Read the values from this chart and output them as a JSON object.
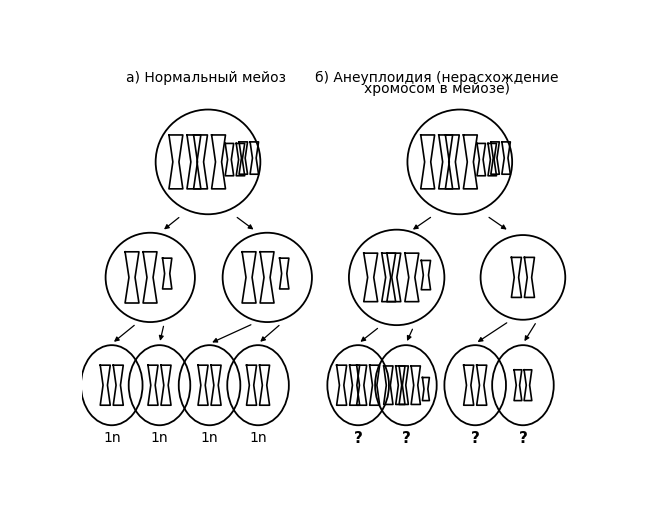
{
  "title_a": "а) Нормальный мейоз",
  "title_b": "б) Анеуплоидия (нерасхождение\nхромосом в мейозе)",
  "labels_normal": [
    "1n",
    "1n",
    "1n",
    "1n"
  ],
  "labels_aneu": [
    "?",
    "?",
    "?",
    "?"
  ],
  "bg_color": "#ffffff",
  "line_color": "#000000",
  "figsize": [
    6.47,
    5.15
  ],
  "dpi": 100
}
